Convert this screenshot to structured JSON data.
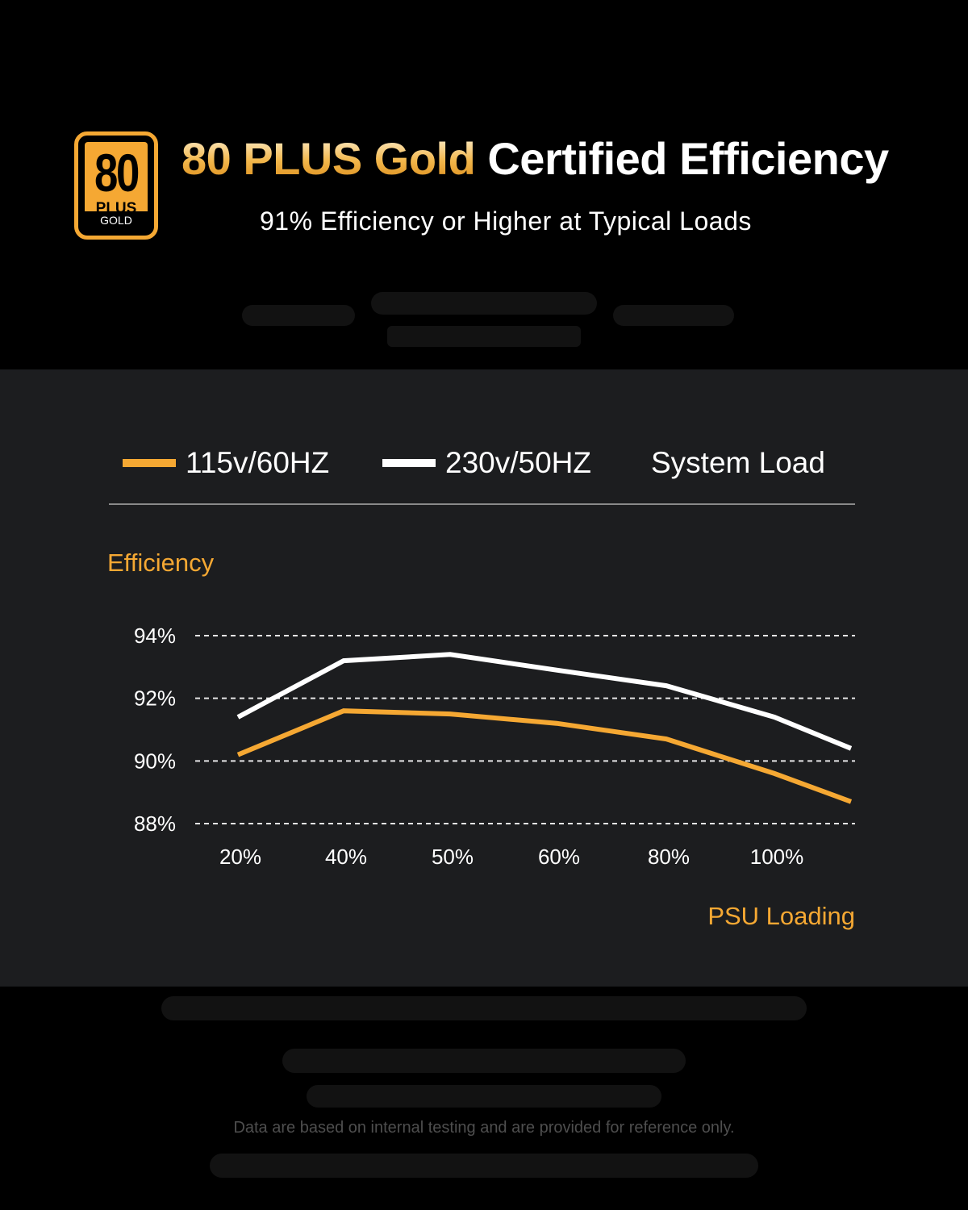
{
  "header": {
    "logo": {
      "number": "80",
      "plus": "PLUS",
      "level": "GOLD"
    },
    "title_highlight": "80 PLUS Gold",
    "title_rest": "Certified Efficiency",
    "subtitle": "91% Efficiency or Higher at Typical Loads"
  },
  "colors": {
    "accent": "#f5a833",
    "panel": "#1c1d1f",
    "background": "#000000",
    "line_white": "#ffffff"
  },
  "chart_data": {
    "type": "line",
    "legend_title": "System Load",
    "ylabel": "Efficiency",
    "xlabel": "PSU Loading",
    "categories": [
      "20%",
      "40%",
      "50%",
      "60%",
      "80%",
      "100%",
      ""
    ],
    "yticks": [
      "94%",
      "92%",
      "90%",
      "88%"
    ],
    "ylim": [
      88,
      94
    ],
    "grid": "horizontal dashed",
    "legend_placement": "top",
    "series": [
      {
        "name": "115v/60HZ",
        "color": "#f5a833",
        "values": [
          90.2,
          91.6,
          91.5,
          91.2,
          90.7,
          89.6,
          88.7
        ]
      },
      {
        "name": "230v/50HZ",
        "color": "#ffffff",
        "values": [
          91.4,
          93.2,
          93.4,
          92.9,
          92.4,
          91.4,
          90.4
        ]
      }
    ]
  },
  "footer": {
    "note": "Data are based on internal testing and are provided for reference only."
  }
}
